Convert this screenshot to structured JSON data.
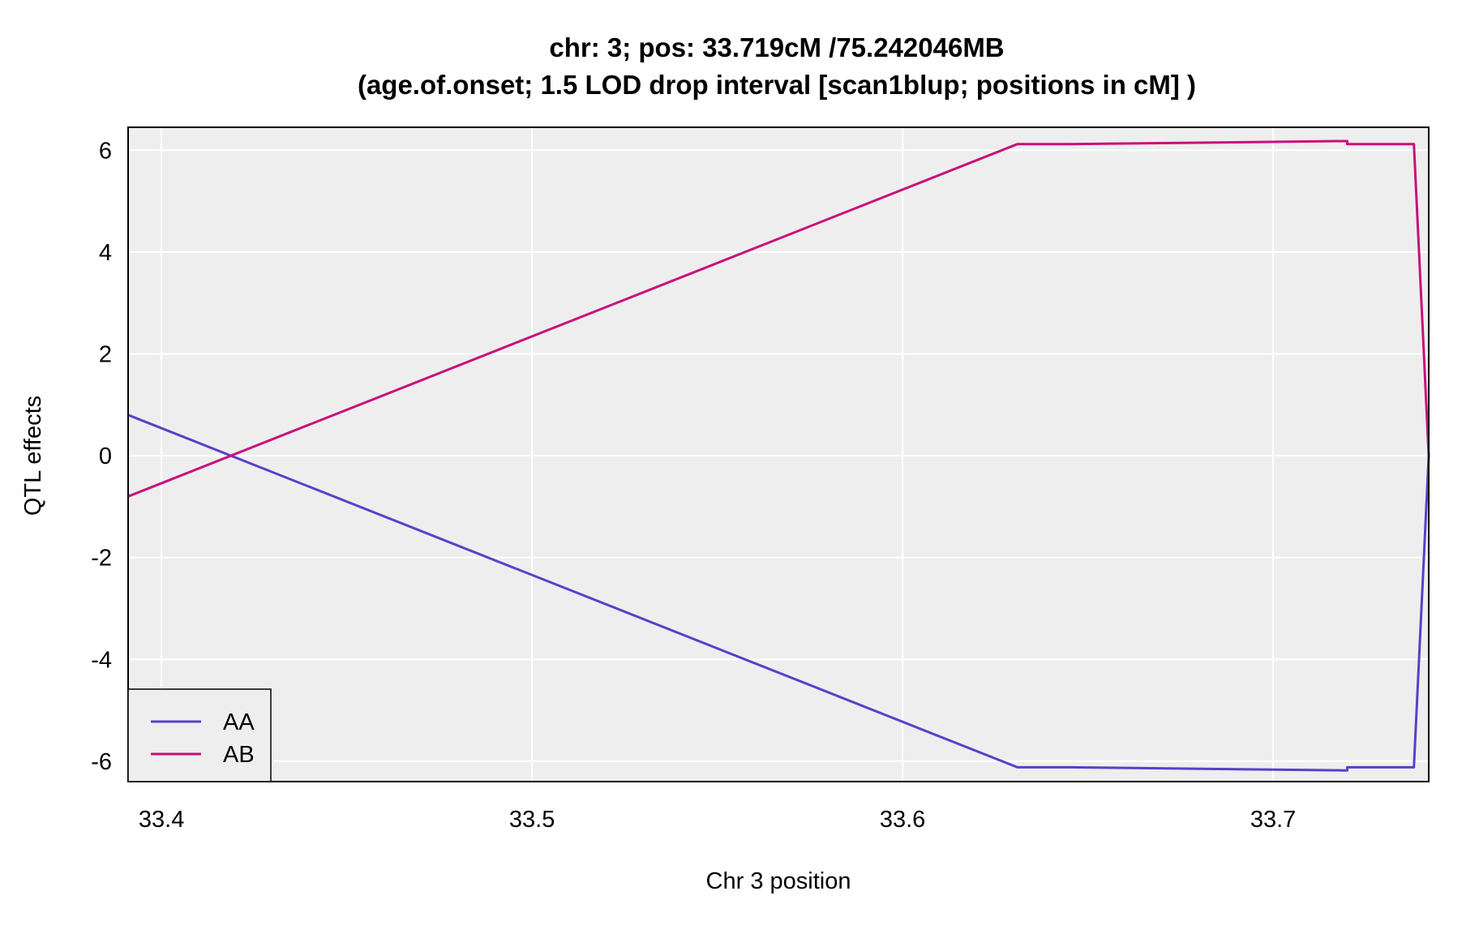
{
  "chart_data": {
    "type": "line",
    "title": "chr: 3; pos: 33.719cM /75.242046MB",
    "subtitle": "(age.of.onset; 1.5 LOD drop interval [scan1blup; positions in cM] )",
    "xlabel": "Chr 3 position",
    "ylabel": "QTL effects",
    "xlim": [
      33.391,
      33.742
    ],
    "ylim": [
      -6.4,
      6.45
    ],
    "x_ticks": [
      33.4,
      33.5,
      33.6,
      33.7
    ],
    "x_tick_labels": [
      "33.4",
      "33.5",
      "33.6",
      "33.7"
    ],
    "y_ticks": [
      -6,
      -4,
      -2,
      0,
      2,
      4,
      6
    ],
    "y_tick_labels": [
      "-6",
      "-4",
      "-2",
      "0",
      "2",
      "4",
      "6"
    ],
    "grid": true,
    "legend_position": "bottom-left",
    "background_color": "#eeeeee",
    "series": [
      {
        "name": "AA",
        "color": "#5a3fc8",
        "x": [
          33.391,
          33.631,
          33.645,
          33.719,
          33.72,
          33.72,
          33.738,
          33.742
        ],
        "y": [
          0.8,
          -6.12,
          -6.12,
          -6.18,
          -6.18,
          -6.12,
          -6.12,
          0.0
        ]
      },
      {
        "name": "AB",
        "color": "#c8107a",
        "x": [
          33.391,
          33.631,
          33.645,
          33.719,
          33.72,
          33.72,
          33.738,
          33.742
        ],
        "y": [
          -0.8,
          6.12,
          6.12,
          6.18,
          6.18,
          6.12,
          6.12,
          0.0
        ]
      }
    ]
  }
}
